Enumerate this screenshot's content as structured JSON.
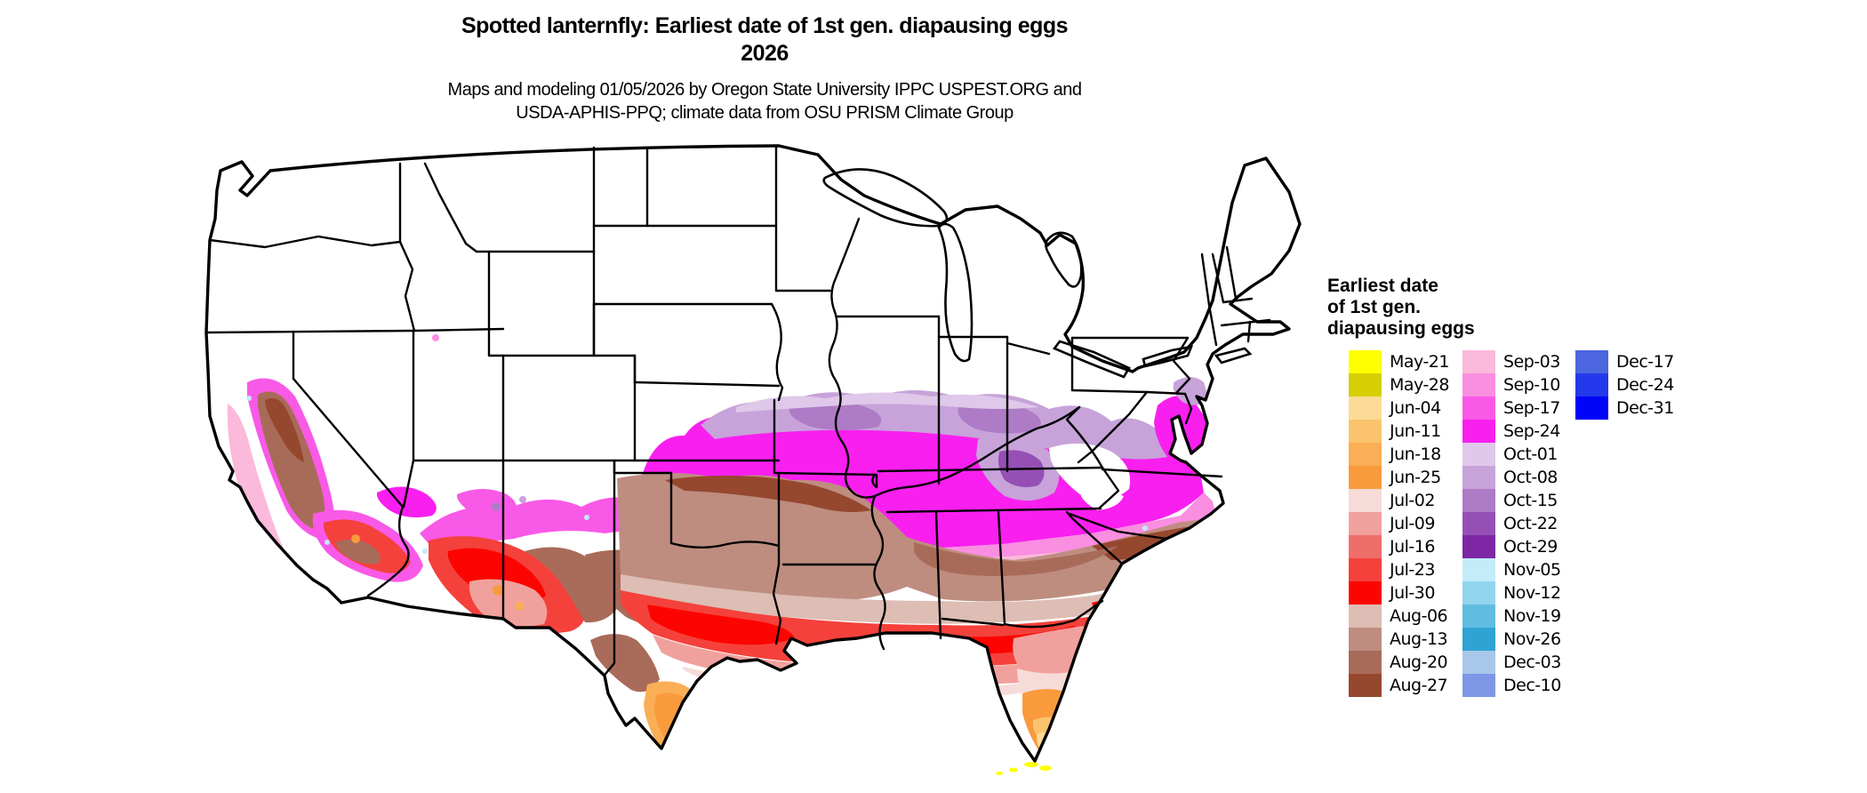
{
  "title": {
    "line1": "Spotted lanternfly: Earliest date of 1st gen. diapausing eggs",
    "line2": "2026"
  },
  "subtitle": {
    "line1": "Maps and modeling 01/05/2026 by Oregon State University IPPC USPEST.ORG and",
    "line2": "USDA-APHIS-PPQ; climate data from OSU PRISM Climate Group"
  },
  "legend": {
    "title_lines": [
      "Earliest date",
      "of 1st gen.",
      "diapausing eggs"
    ],
    "columns": [
      [
        {
          "label": "May-21",
          "color": "#FFFF00"
        },
        {
          "label": "May-28",
          "color": "#D6CF04"
        },
        {
          "label": "Jun-04",
          "color": "#FBDB95"
        },
        {
          "label": "Jun-11",
          "color": "#FBC36D"
        },
        {
          "label": "Jun-18",
          "color": "#FAAE55"
        },
        {
          "label": "Jun-25",
          "color": "#F99B3D"
        },
        {
          "label": "Jul-02",
          "color": "#F6DBD7"
        },
        {
          "label": "Jul-09",
          "color": "#F1A19D"
        },
        {
          "label": "Jul-16",
          "color": "#EE6E6A"
        },
        {
          "label": "Jul-23",
          "color": "#F4413B"
        },
        {
          "label": "Jul-30",
          "color": "#FC0500"
        },
        {
          "label": "Aug-06",
          "color": "#DDBDB4"
        },
        {
          "label": "Aug-13",
          "color": "#BE8D80"
        },
        {
          "label": "Aug-20",
          "color": "#A96B59"
        },
        {
          "label": "Aug-27",
          "color": "#96482F"
        }
      ],
      [
        {
          "label": "Sep-03",
          "color": "#FBB9DB"
        },
        {
          "label": "Sep-10",
          "color": "#FA8EE0"
        },
        {
          "label": "Sep-17",
          "color": "#F959E7"
        },
        {
          "label": "Sep-24",
          "color": "#F91FEF"
        },
        {
          "label": "Oct-01",
          "color": "#DFC8E9"
        },
        {
          "label": "Oct-08",
          "color": "#C7A3D9"
        },
        {
          "label": "Oct-15",
          "color": "#AE7BC7"
        },
        {
          "label": "Oct-22",
          "color": "#9650B5"
        },
        {
          "label": "Oct-29",
          "color": "#7D27A5"
        },
        {
          "label": "Nov-05",
          "color": "#C3EBF9"
        },
        {
          "label": "Nov-12",
          "color": "#93D5EE"
        },
        {
          "label": "Nov-19",
          "color": "#60BDE1"
        },
        {
          "label": "Nov-26",
          "color": "#2FA3D4"
        },
        {
          "label": "Dec-03",
          "color": "#A9C7E8"
        },
        {
          "label": "Dec-10",
          "color": "#7D97E6"
        }
      ],
      [
        {
          "label": "Dec-17",
          "color": "#4B66DE"
        },
        {
          "label": "Dec-24",
          "color": "#2339EB"
        },
        {
          "label": "Dec-31",
          "color": "#0105F7"
        }
      ]
    ]
  }
}
